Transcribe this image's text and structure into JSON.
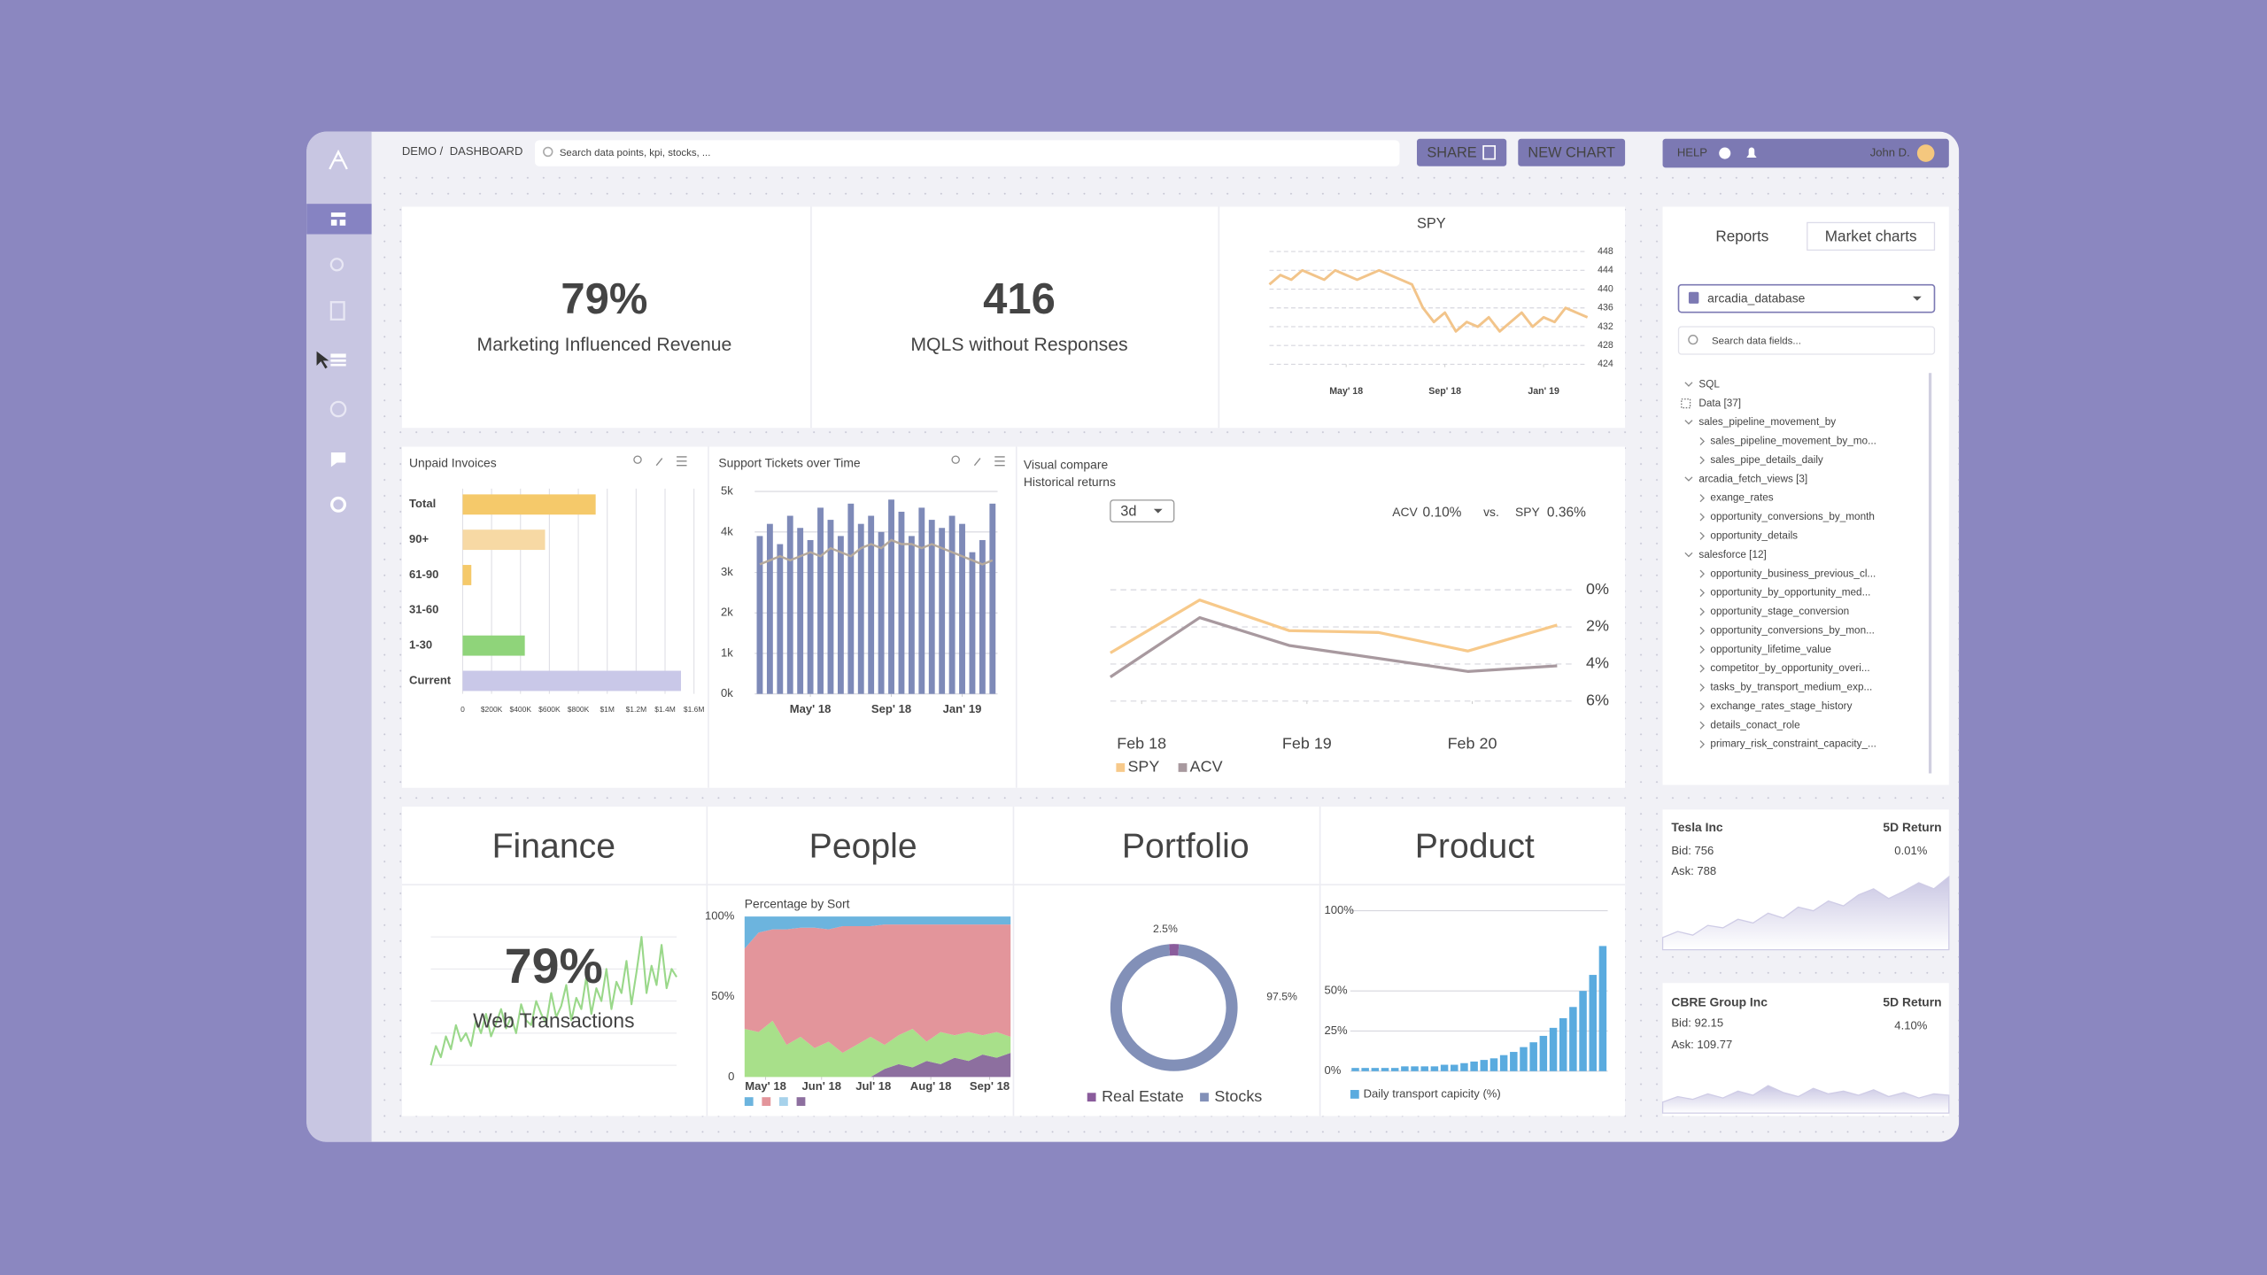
{
  "breadcrumb": {
    "root": "DEMO /",
    "page": "DASHBOARD"
  },
  "search_placeholder": "Search data points, kpi, stocks, ...",
  "buttons": {
    "share": "SHARE",
    "new_chart": "NEW CHART",
    "help": "HELP"
  },
  "user": "John D.",
  "kpis": [
    {
      "value": "79%",
      "label": "Marketing Influenced Revenue"
    },
    {
      "value": "416",
      "label": "MQLS without Responses"
    }
  ],
  "sections": [
    "Finance",
    "People",
    "Portfolio",
    "Product"
  ],
  "panel": {
    "tabs": [
      "Reports",
      "Market charts"
    ],
    "database": "arcadia_database",
    "search_placeholder": "Search data fields...",
    "tree": [
      {
        "label": "SQL"
      },
      {
        "label": "Data [37]"
      },
      {
        "label": "sales_pipeline_movement_by",
        "children": [
          "sales_pipeline_movement_by_mo...",
          "sales_pipe_details_daily"
        ]
      },
      {
        "label": "arcadia_fetch_views [3]",
        "children": [
          "exange_rates",
          "opportunity_conversions_by_month",
          "opportunity_details"
        ]
      },
      {
        "label": "salesforce [12]",
        "children": [
          "opportunity_business_previous_cl...",
          "opportunity_by_opportunity_med...",
          "opportunity_stage_conversion",
          "opportunity_conversions_by_mon...",
          "opportunity_lifetime_value",
          "competitor_by_opportunity_overi...",
          "tasks_by_transport_medium_exp...",
          "exchange_rates_stage_history",
          "details_conact_role",
          "primary_risk_constraint_capacity_..."
        ]
      }
    ]
  },
  "stocks": [
    {
      "name": "Tesla Inc",
      "return_label": "5D Return",
      "return": "0.01%",
      "bid": "Bid: 756",
      "ask": "Ask: 788"
    },
    {
      "name": "CBRE Group Inc",
      "return_label": "5D Return",
      "return": "4.10%",
      "bid": "Bid: 92.15",
      "ask": "Ask: 109.77"
    }
  ],
  "chart_data": [
    {
      "type": "line",
      "title": "SPY",
      "color": "#f2c48a",
      "values": [
        441,
        443,
        442,
        444,
        443,
        442,
        444,
        443,
        442,
        443,
        444,
        443,
        442,
        441,
        436,
        433,
        435,
        431,
        433,
        432,
        434,
        431,
        433,
        435,
        432,
        434,
        433,
        436,
        435,
        434
      ],
      "xlim": [
        0,
        29
      ],
      "xticks": [
        {
          "value": 7,
          "label": "May' 18"
        },
        {
          "value": 16,
          "label": "Sep' 18"
        },
        {
          "value": 25,
          "label": "Jan' 19"
        }
      ],
      "ylim": [
        424,
        448
      ],
      "yticks": [
        424,
        428,
        432,
        436,
        440,
        444,
        448
      ],
      "grid": true
    },
    {
      "type": "hbar",
      "title": "Unpaid  Invoices",
      "categories": [
        "Total",
        "90+",
        "61-90",
        "31-60",
        "1-30",
        "Current"
      ],
      "values": [
        920000,
        570000,
        60000,
        0,
        430000,
        1510000
      ],
      "colors": [
        "#f5c96a",
        "#f7d9a4",
        "#f5c96a",
        "#f5c96a",
        "#8fd47a",
        "#c9c8e8"
      ],
      "xlim": [
        0,
        1600000
      ],
      "xticks": [
        0,
        {
          "value": 200000,
          "label": "$200K"
        },
        {
          "value": 400000,
          "label": "$400K"
        },
        {
          "value": 600000,
          "label": "$600K"
        },
        {
          "value": 800000,
          "label": "$800K"
        },
        {
          "value": 1000000,
          "label": "$1M"
        },
        {
          "value": 1200000,
          "label": "$1.2M"
        },
        {
          "value": 1400000,
          "label": "$1.4M"
        },
        {
          "value": 1600000,
          "label": "$1.6M"
        }
      ],
      "grid": true
    },
    {
      "type": "combo",
      "title": "Support Tickets over Time",
      "series": [
        {
          "kind": "bar",
          "color": "#7e8ab8",
          "values": [
            3900,
            4200,
            3700,
            4400,
            4100,
            3800,
            4600,
            4300,
            3900,
            4700,
            4200,
            4400,
            4000,
            4800,
            4500,
            3900,
            4600,
            4300,
            4100,
            4400,
            4200,
            3500,
            3800,
            4700
          ]
        },
        {
          "kind": "line",
          "color": "#b5a99c",
          "values": [
            3200,
            3300,
            3400,
            3300,
            3400,
            3500,
            3400,
            3600,
            3500,
            3400,
            3600,
            3700,
            3600,
            3800,
            3700,
            3700,
            3600,
            3700,
            3600,
            3500,
            3400,
            3300,
            3200,
            3300
          ]
        }
      ],
      "xticks": [
        {
          "value": 5,
          "label": "May' 18"
        },
        {
          "value": 13,
          "label": "Sep' 18"
        },
        {
          "value": 20,
          "label": "Jan' 19"
        }
      ],
      "ylim": [
        0,
        5000
      ],
      "yticks": [
        {
          "value": 0,
          "label": "0k"
        },
        {
          "value": 1000,
          "label": "1k"
        },
        {
          "value": 2000,
          "label": "2k"
        },
        {
          "value": 3000,
          "label": "3k"
        },
        {
          "value": 4000,
          "label": "4k"
        },
        {
          "value": 5000,
          "label": "5k"
        }
      ],
      "grid": true
    },
    {
      "type": "line",
      "title": "Visual compare",
      "subtitle": "Historical returns",
      "period": "3d",
      "compare": {
        "a_label": "ACV",
        "a_value": "0.10%",
        "vs": "vs.",
        "b_label": "SPY",
        "b_value": "0.36%"
      },
      "x": [
        0,
        1,
        2,
        3,
        4,
        5
      ],
      "series": [
        {
          "name": "SPY",
          "color": "#f7c98a",
          "values": [
            3.4,
            0.55,
            2.2,
            2.3,
            3.3,
            1.9
          ]
        },
        {
          "name": "ACV",
          "color": "#a8999f",
          "values": [
            4.7,
            1.5,
            3.0,
            3.7,
            4.4,
            4.1
          ]
        }
      ],
      "xlim": [
        0,
        5
      ],
      "xticks": [
        {
          "value": 0.35,
          "label": "Feb 18"
        },
        {
          "value": 2.2,
          "label": "Feb 19"
        },
        {
          "value": 4.05,
          "label": "Feb 20"
        }
      ],
      "ylim": [
        6,
        0
      ],
      "yticks": [
        {
          "value": 0,
          "label": "0%"
        },
        {
          "value": 2,
          "label": "2%"
        },
        {
          "value": 4,
          "label": "4%"
        },
        {
          "value": 6,
          "label": "6%"
        }
      ],
      "grid": true,
      "legend": "bottom-left"
    },
    {
      "type": "line",
      "value_text": "79%",
      "subtitle": "Web Transactions",
      "color": "#9ad88a",
      "values": [
        10,
        22,
        15,
        28,
        20,
        35,
        25,
        30,
        22,
        38,
        30,
        42,
        28,
        36,
        45,
        33,
        40,
        30,
        48,
        38,
        35,
        50,
        42,
        36,
        55,
        40,
        47,
        60,
        38,
        52,
        45,
        65,
        42,
        58,
        50,
        70,
        45,
        62,
        55,
        75,
        48,
        68,
        90,
        55,
        72,
        60,
        85,
        58,
        70,
        65
      ],
      "ylim": [
        0,
        100
      ]
    },
    {
      "type": "area",
      "stacked": true,
      "title": "Percentage by Sort",
      "series": [
        {
          "color": "#8d6f9f",
          "values": [
            0,
            0,
            0,
            0,
            0,
            0,
            0,
            0,
            0,
            0,
            5,
            8,
            6,
            10,
            8,
            12,
            10,
            14,
            12,
            15
          ]
        },
        {
          "color": "#a8e08a",
          "values": [
            30,
            28,
            35,
            20,
            25,
            18,
            22,
            15,
            20,
            25,
            15,
            18,
            24,
            12,
            20,
            14,
            18,
            12,
            16,
            10
          ]
        },
        {
          "color": "#e3959b",
          "values": [
            50,
            62,
            57,
            72,
            68,
            75,
            70,
            79,
            74,
            69,
            75,
            69,
            65,
            73,
            67,
            69,
            67,
            69,
            67,
            70
          ]
        },
        {
          "color": "#6cb4de",
          "values": [
            20,
            10,
            8,
            8,
            7,
            7,
            8,
            6,
            6,
            6,
            5,
            5,
            5,
            5,
            5,
            5,
            5,
            5,
            5,
            5
          ]
        }
      ],
      "xlim": [
        0,
        19
      ],
      "xticks": [
        {
          "value": 1.5,
          "label": "May' 18"
        },
        {
          "value": 5.5,
          "label": "Jun' 18"
        },
        {
          "value": 9.2,
          "label": "Jul' 18"
        },
        {
          "value": 13.3,
          "label": "Aug' 18"
        },
        {
          "value": 17.5,
          "label": "Sep' 18"
        }
      ],
      "ylim": [
        0,
        100
      ],
      "yticks": [
        0,
        {
          "value": 50,
          "label": "50%"
        },
        {
          "value": 100,
          "label": "100%"
        }
      ],
      "legend": "bottom-left"
    },
    {
      "type": "pie",
      "donut": true,
      "categories": [
        "Real Estate",
        "Stocks"
      ],
      "values": [
        2.5,
        97.5
      ],
      "value_labels": [
        "2.5%",
        "97.5%"
      ],
      "colors": [
        "#8a5c9c",
        "#8290b8"
      ],
      "legend": "bottom"
    },
    {
      "type": "bar",
      "name": "Daily transport capicity (%)",
      "color": "#5aabdf",
      "values": [
        2,
        2,
        2,
        2,
        2,
        3,
        3,
        3,
        3,
        4,
        4,
        5,
        6,
        7,
        8,
        10,
        12,
        15,
        18,
        22,
        27,
        33,
        40,
        50,
        60,
        78
      ],
      "ylim": [
        0,
        100
      ],
      "yticks": [
        {
          "value": 0,
          "label": "0%"
        },
        {
          "value": 25,
          "label": "25%"
        },
        {
          "value": 50,
          "label": "50%"
        },
        {
          "value": 100,
          "label": "100%"
        }
      ],
      "grid": true,
      "legend": "bottom-left"
    },
    {
      "type": "area",
      "color": "#cfcce6",
      "values": [
        10,
        15,
        12,
        20,
        18,
        25,
        22,
        30,
        26,
        35,
        32,
        40,
        36,
        45,
        50,
        42,
        48,
        55,
        50,
        60
      ],
      "ylim": [
        0,
        70
      ]
    },
    {
      "type": "area",
      "color": "#cfcce6",
      "values": [
        8,
        12,
        10,
        14,
        11,
        16,
        13,
        20,
        15,
        12,
        18,
        14,
        16,
        13,
        17,
        12,
        15,
        11,
        14,
        13
      ],
      "ylim": [
        0,
        40
      ]
    }
  ]
}
